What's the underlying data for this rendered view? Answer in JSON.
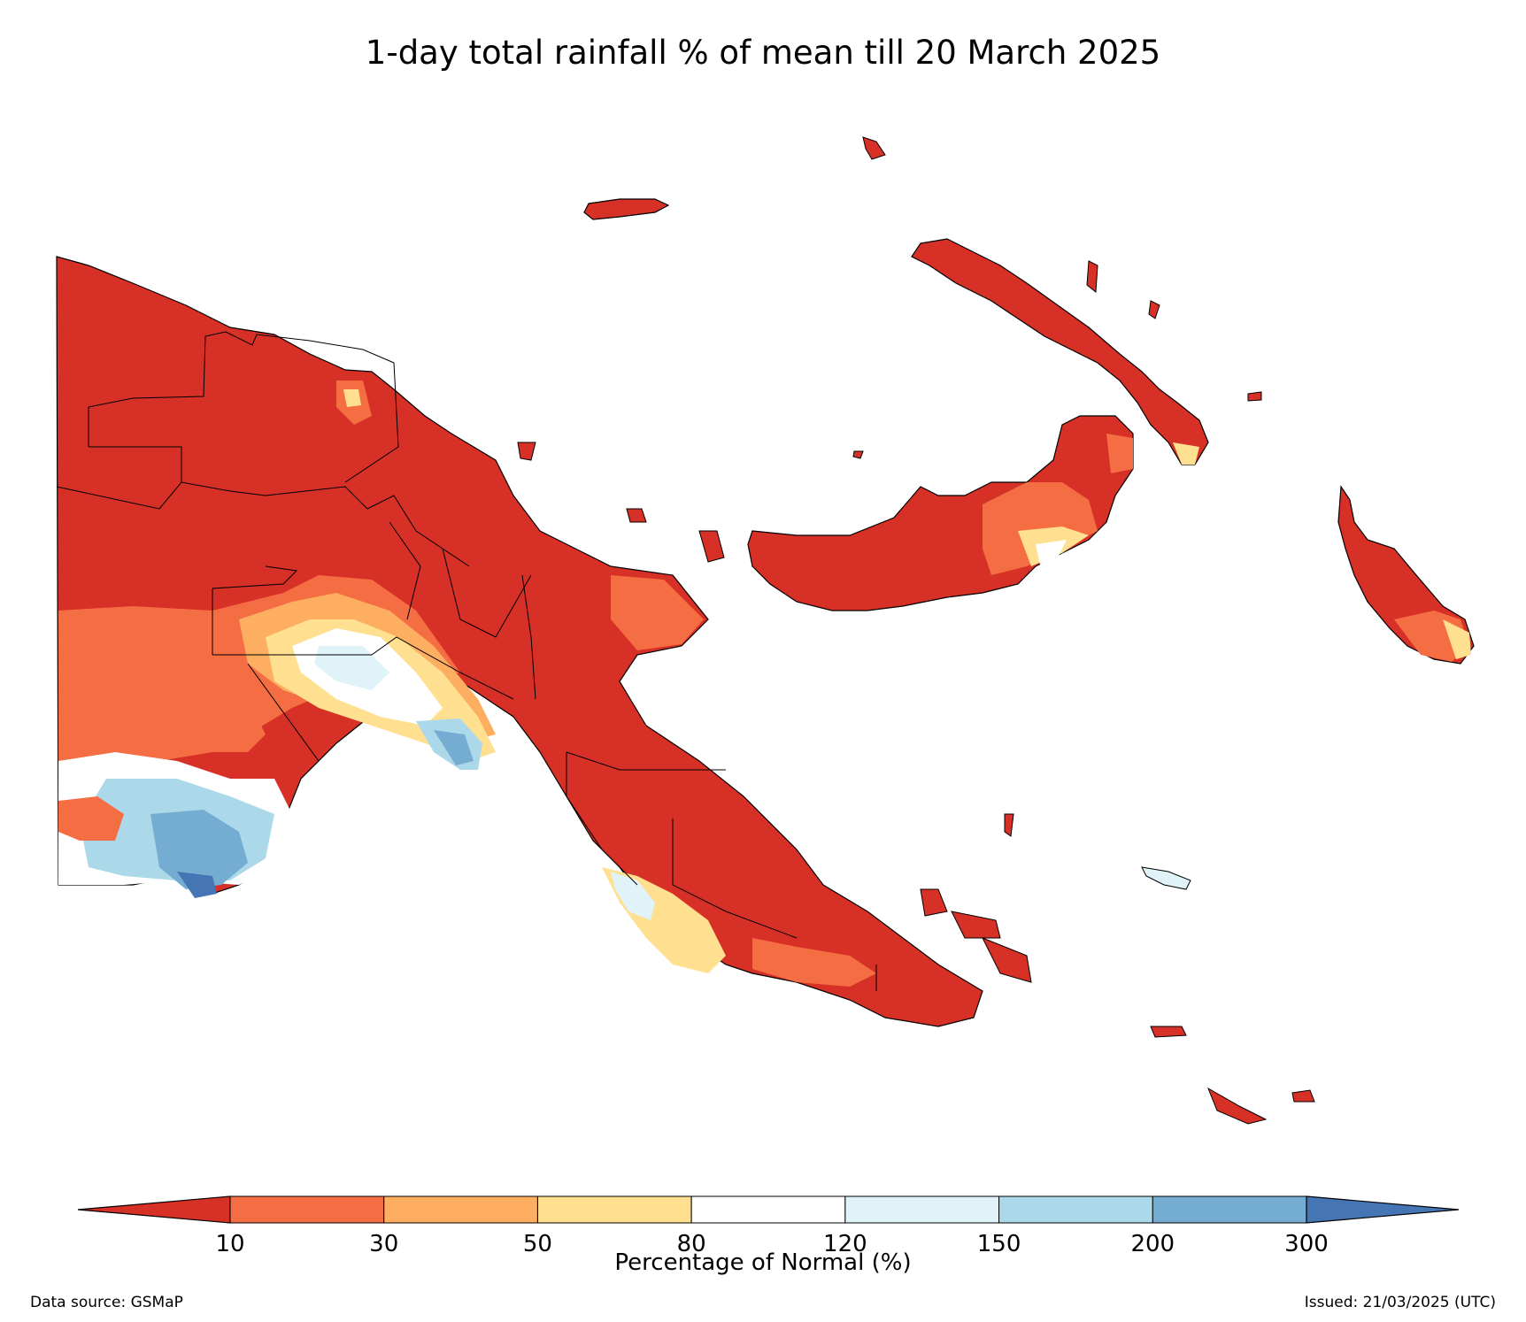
{
  "title": "1-day total rainfall % of mean till 20 March 2025",
  "colorbar": {
    "label": "Percentage of Normal (%)",
    "ticks": [
      "10",
      "30",
      "50",
      "80",
      "120",
      "150",
      "200",
      "300"
    ],
    "colors": [
      "#d73027",
      "#f46d43",
      "#fdae61",
      "#fee090",
      "#ffffff",
      "#e0f3f8",
      "#abd9e9",
      "#74add1",
      "#4575b4"
    ]
  },
  "footer": {
    "source": "Data source: GSMaP",
    "issued": "Issued: 21/03/2025 (UTC)"
  },
  "palette": {
    "dry": "#d73027",
    "dry2": "#f46d43",
    "dry3": "#fdae61",
    "dry4": "#fee090",
    "normal": "#ffffff",
    "wet1": "#e0f3f8",
    "wet2": "#abd9e9",
    "wet3": "#74add1",
    "wet4": "#4575b4"
  }
}
